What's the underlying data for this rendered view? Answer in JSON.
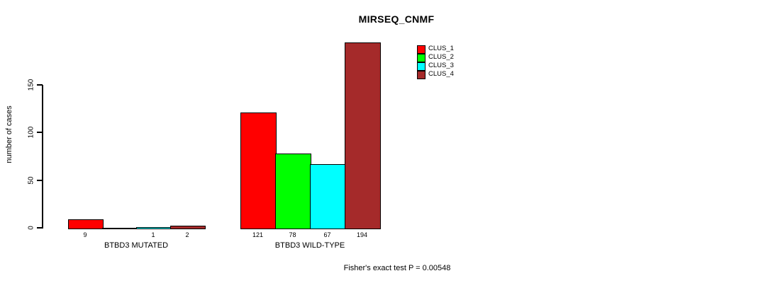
{
  "chart_data": {
    "type": "bar",
    "title": "MIRSEQ_CNMF",
    "ylabel": "number of cases",
    "xlabel": "",
    "ylim": [
      0,
      150
    ],
    "yticks": [
      0,
      50,
      100,
      150
    ],
    "grid": false,
    "legend_position": "top-right",
    "background": "#FFFFFF",
    "axis_color": "#000000",
    "categories": [
      "BTBD3 MUTATED",
      "BTBD3 WILD-TYPE"
    ],
    "series": [
      {
        "name": "CLUS_1",
        "color": "#FF0000",
        "values": [
          9,
          121
        ]
      },
      {
        "name": "CLUS_2",
        "color": "#00FF00",
        "values": [
          0,
          78
        ]
      },
      {
        "name": "CLUS_3",
        "color": "#00FFFF",
        "values": [
          1,
          67
        ]
      },
      {
        "name": "CLUS_4",
        "color": "#A52A2A",
        "values": [
          2,
          194
        ]
      }
    ],
    "bar_value_labels": [
      [
        "9",
        "",
        "1",
        "2"
      ],
      [
        "121",
        "78",
        "67",
        "194"
      ]
    ],
    "annotation": "Fisher's exact test P = 0.00548"
  }
}
